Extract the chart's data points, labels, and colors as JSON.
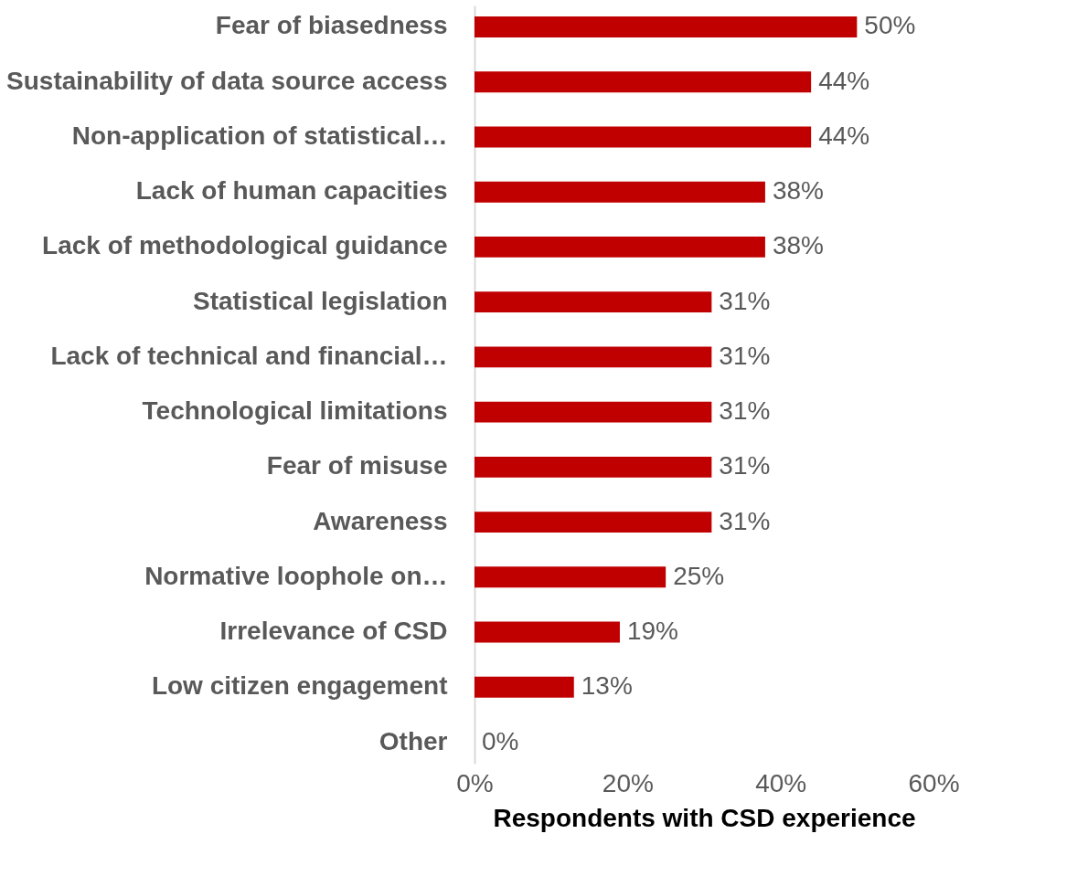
{
  "chart_data": {
    "type": "bar",
    "orientation": "horizontal",
    "categories": [
      "Fear of biasedness",
      "Sustainability of data source access",
      "Non-application of statistical…",
      "Lack of human capacities",
      "Lack of methodological guidance",
      "Statistical legislation",
      "Lack of technical and financial…",
      "Technological limitations",
      "Fear of misuse",
      "Awareness",
      "Normative loophole on…",
      "Irrelevance of CSD",
      "Low citizen engagement",
      "Other"
    ],
    "values": [
      50,
      44,
      44,
      38,
      38,
      31,
      31,
      31,
      31,
      31,
      25,
      19,
      13,
      0
    ],
    "value_labels": [
      "50%",
      "44%",
      "44%",
      "38%",
      "38%",
      "31%",
      "31%",
      "31%",
      "31%",
      "31%",
      "25%",
      "19%",
      "13%",
      "0%"
    ],
    "color": "#c00000",
    "xlabel": "Respondents with CSD experience",
    "xlim": [
      0,
      60
    ],
    "xticks": [
      {
        "value": 0,
        "label": "0%"
      },
      {
        "value": 20,
        "label": "20%"
      },
      {
        "value": 40,
        "label": "40%"
      },
      {
        "value": 60,
        "label": "60%"
      }
    ],
    "grid": false
  }
}
